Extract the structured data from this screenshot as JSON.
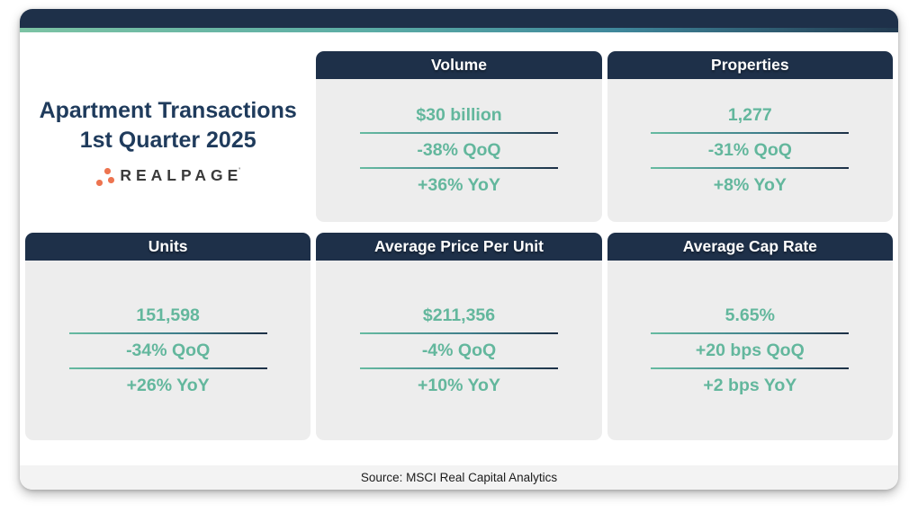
{
  "header": {
    "title_line1": "Apartment Transactions",
    "title_line2": "1st Quarter 2025",
    "brand_wordmark": "REALPAGE",
    "brand_trademark": "'"
  },
  "footer": {
    "source": "Source: MSCI Real Capital Analytics"
  },
  "colors": {
    "navy": "#1E3049",
    "title_navy": "#1F3B5C",
    "teal_text": "#63B79D",
    "accent_orange": "#ED7450",
    "card_body_gray": "#EDEDED",
    "footer_gray": "#F3F3F3",
    "divider_gradient_start": "#66BBA1",
    "divider_gradient_end": "#1C2F45",
    "accent_strip_gradient": [
      "#7CC3A4",
      "#5BACA5",
      "#223A50"
    ]
  },
  "chart_data": {
    "type": "table",
    "title": "Apartment Transactions 1st Quarter 2025",
    "source": "Source: MSCI Real Capital Analytics",
    "cards": [
      {
        "title": "Volume",
        "value": "$30 billion",
        "qoq": "-38% QoQ",
        "yoy": "+36% YoY"
      },
      {
        "title": "Properties",
        "value": "1,277",
        "qoq": "-31% QoQ",
        "yoy": "+8% YoY"
      },
      {
        "title": "Units",
        "value": "151,598",
        "qoq": "-34% QoQ",
        "yoy": "+26% YoY"
      },
      {
        "title": "Average Price Per Unit",
        "value": "$211,356",
        "qoq": "-4% QoQ",
        "yoy": "+10% YoY"
      },
      {
        "title": "Average Cap Rate",
        "value": "5.65%",
        "qoq": "+20 bps QoQ",
        "yoy": "+2 bps YoY"
      }
    ]
  }
}
